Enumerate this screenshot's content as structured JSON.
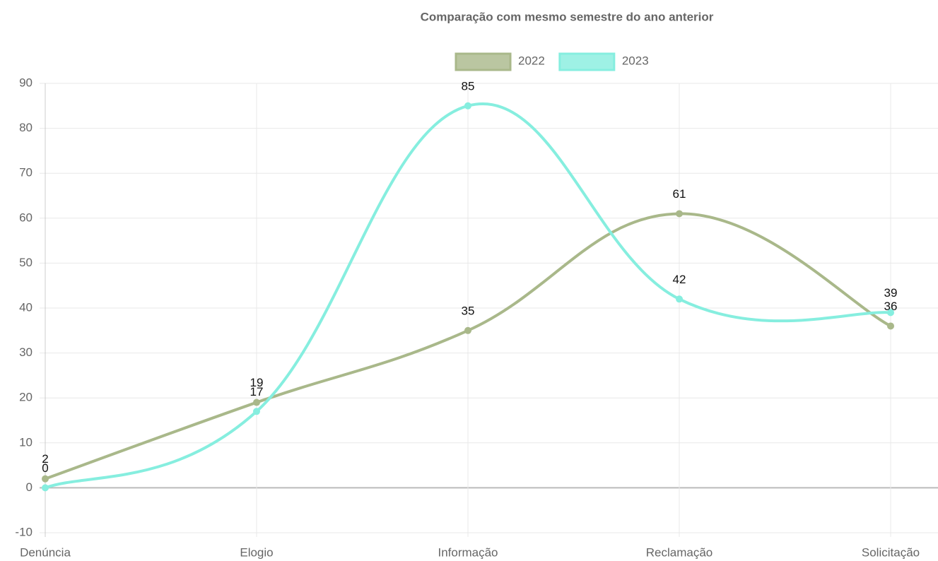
{
  "chart_data": {
    "type": "line",
    "title": "Comparação com mesmo semestre do ano anterior",
    "categories": [
      "Denúncia",
      "Elogio",
      "Informação",
      "Reclamação",
      "Solicitação"
    ],
    "series": [
      {
        "name": "2022",
        "color": "#a9b88a",
        "values": [
          2,
          19,
          35,
          61,
          36
        ]
      },
      {
        "name": "2023",
        "color": "#86eedf",
        "values": [
          0,
          17,
          85,
          42,
          39
        ]
      }
    ],
    "ylim": [
      -10,
      90
    ],
    "yticks": [
      -10,
      0,
      10,
      20,
      30,
      40,
      50,
      60,
      70,
      80,
      90
    ],
    "grid": true,
    "legend": "top"
  }
}
